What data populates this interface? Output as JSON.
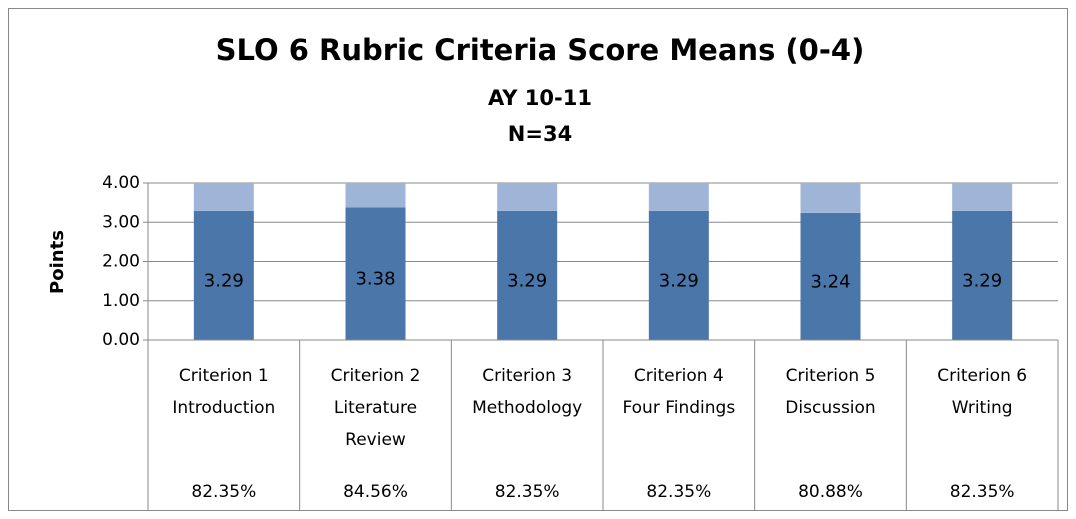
{
  "chart_data": {
    "type": "stacked_bar",
    "title": "SLO 6 Rubric Criteria Score Means (0-4)",
    "subtitles": [
      "AY 10-11",
      "N=34"
    ],
    "y_label": "Points",
    "categories": [
      [
        "Criterion 1",
        "Introduction"
      ],
      [
        "Criterion 2",
        "Literature",
        "Review"
      ],
      [
        "Criterion 3",
        "Methodology"
      ],
      [
        "Criterion 4",
        "Four Findings"
      ],
      [
        "Criterion 5",
        "Discussion"
      ],
      [
        "Criterion 6",
        "Writing"
      ]
    ],
    "series": [
      {
        "color": "#4a76aa",
        "values": [
          3.29,
          3.38,
          3.29,
          3.29,
          3.24,
          3.29
        ],
        "show_labels": true
      },
      {
        "color": "#9fb5d8",
        "values": [
          0.71,
          0.62,
          0.71,
          0.71,
          0.76,
          0.71
        ],
        "show_labels": false
      }
    ],
    "data_table": [
      "82.35%",
      "84.56%",
      "82.35%",
      "82.35%",
      "80.88%",
      "82.35%"
    ],
    "ylim": [
      0,
      4
    ],
    "yticks": [
      {
        "value": 0,
        "label": "0.00"
      },
      {
        "value": 1,
        "label": "1.00"
      },
      {
        "value": 2,
        "label": "2.00"
      },
      {
        "value": 3,
        "label": "3.00"
      },
      {
        "value": 4,
        "label": "4.00"
      }
    ],
    "grid": true
  }
}
